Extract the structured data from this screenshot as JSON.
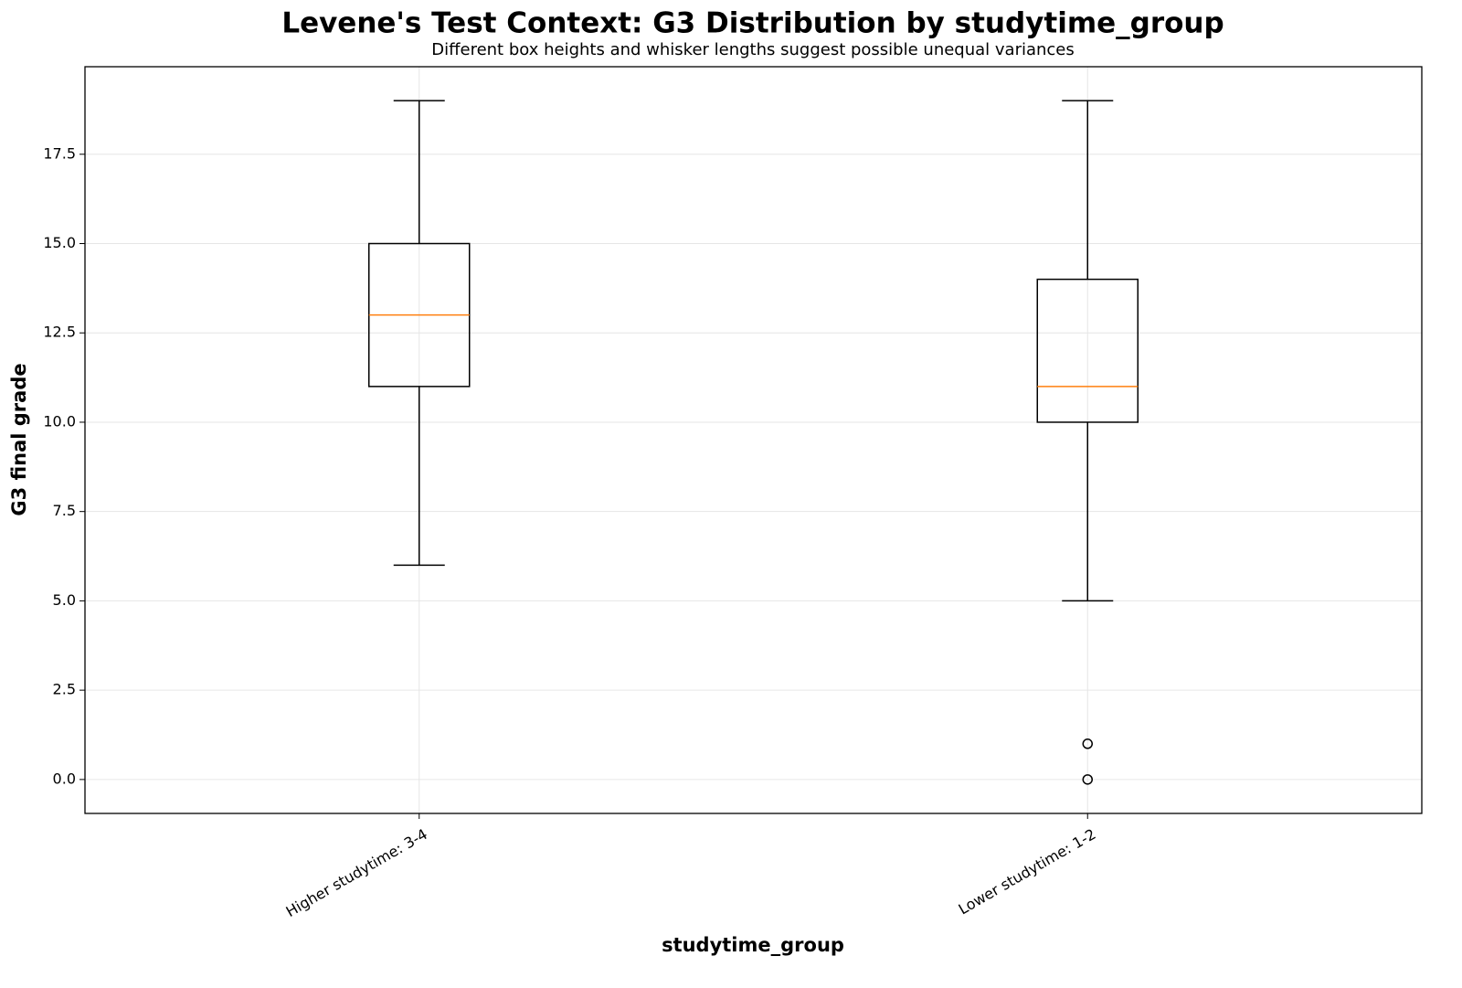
{
  "chart_data": {
    "type": "box",
    "title": "Levene's Test Context: G3 Distribution by studytime_group",
    "subtitle": "Different box heights and whisker lengths suggest possible unequal variances",
    "xlabel": "studytime_group",
    "ylabel": "G3 final grade",
    "categories": [
      "Higher studytime: 3-4",
      "Lower studytime: 1-2"
    ],
    "boxes": [
      {
        "whislo": 6,
        "q1": 11,
        "med": 13,
        "q3": 15,
        "whishi": 19,
        "fliers": []
      },
      {
        "whislo": 5,
        "q1": 10,
        "med": 11,
        "q3": 14,
        "whishi": 19,
        "fliers": [
          1,
          0
        ]
      }
    ],
    "color": "#000000",
    "median_color": "#ff7f0e",
    "ylim": [
      -0.95,
      19.95
    ],
    "yticks": [
      {
        "value": 0,
        "label": "0.0"
      },
      2.5,
      {
        "value": 5,
        "label": "5.0"
      },
      7.5,
      {
        "value": 10,
        "label": "10.0"
      },
      12.5,
      {
        "value": 15,
        "label": "15.0"
      },
      17.5
    ],
    "grid": true
  }
}
